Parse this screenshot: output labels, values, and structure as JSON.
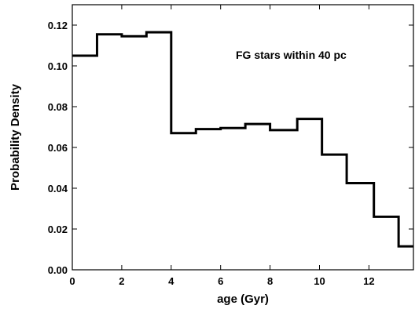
{
  "chart_data": {
    "type": "line",
    "step": true,
    "xlabel": "age (Gyr)",
    "ylabel": "Probability Density",
    "annotation": "FG stars within 40 pc",
    "xlim": [
      0,
      13.8
    ],
    "ylim": [
      0,
      0.13
    ],
    "xticks": [
      0,
      2,
      4,
      6,
      8,
      10,
      12
    ],
    "xtick_labels": [
      "0",
      "2",
      "4",
      "6",
      "8",
      "10",
      "12"
    ],
    "yticks": [
      0,
      0.02,
      0.04,
      0.06,
      0.08,
      0.1,
      0.12
    ],
    "ytick_labels": [
      "0.00",
      "0.02",
      "0.04",
      "0.06",
      "0.08",
      "0.10",
      "0.12"
    ],
    "bin_edges": [
      0,
      1.0,
      2.0,
      3.0,
      4.0,
      5.0,
      6.0,
      7.0,
      8.0,
      9.1,
      10.1,
      11.1,
      12.2,
      13.2,
      13.8
    ],
    "values": [
      0.105,
      0.1155,
      0.1145,
      0.1165,
      0.067,
      0.069,
      0.0695,
      0.0715,
      0.0685,
      0.074,
      0.0565,
      0.0425,
      0.026,
      0.0115
    ],
    "line_color": "#000000",
    "grid": false,
    "frame": true
  }
}
